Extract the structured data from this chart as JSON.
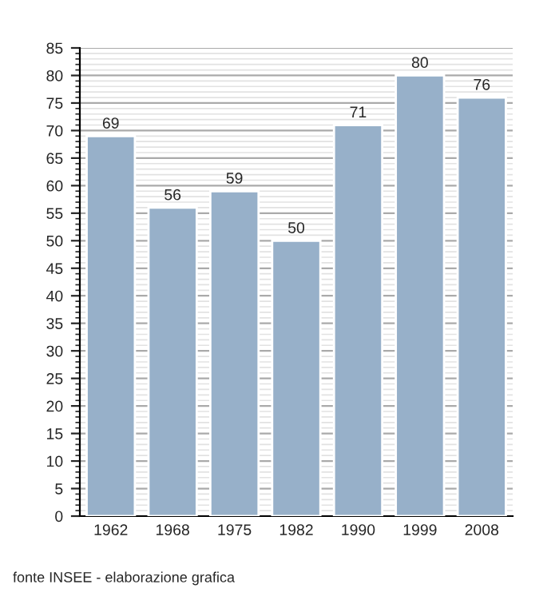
{
  "chart_data": {
    "type": "bar",
    "categories": [
      "1962",
      "1968",
      "1975",
      "1982",
      "1990",
      "1999",
      "2008"
    ],
    "values": [
      69,
      56,
      59,
      50,
      71,
      80,
      76
    ],
    "color": "#97b0c9",
    "data_labels": true,
    "ylim": [
      0,
      85
    ],
    "yticks": [
      0,
      5,
      10,
      15,
      20,
      25,
      30,
      35,
      40,
      45,
      50,
      55,
      60,
      65,
      70,
      75,
      80,
      85
    ],
    "grid": "y",
    "annotations": [
      "fonte INSEE - elaborazione grafica"
    ]
  }
}
